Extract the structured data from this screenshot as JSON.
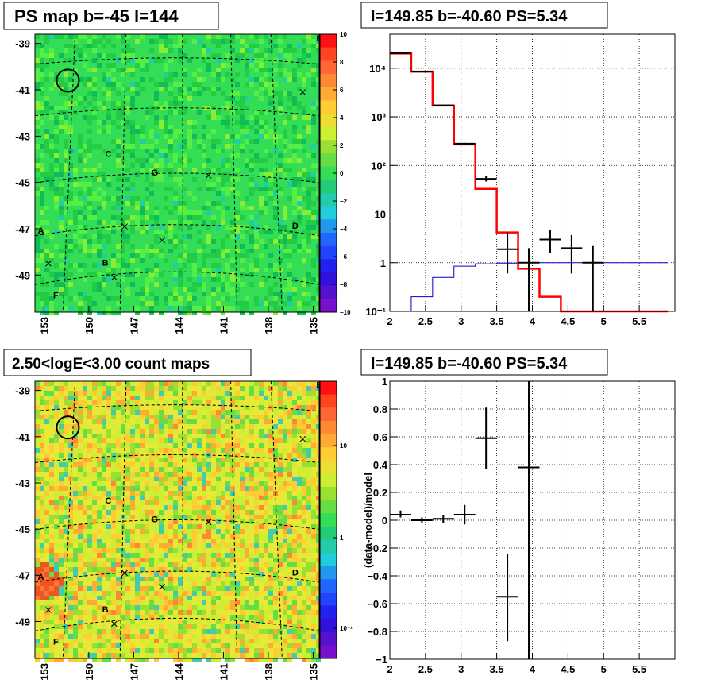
{
  "panels": {
    "ps_map": {
      "title": "PS map b=-45 l=144",
      "y_ticks": [
        "-39",
        "-41",
        "-43",
        "-45",
        "-47",
        "-49"
      ],
      "x_ticks": [
        "153",
        "150",
        "147",
        "144",
        "141",
        "138",
        "135"
      ],
      "colorbar_ticks": [
        "10",
        "8",
        "6",
        "4",
        "2",
        "0",
        "−2",
        "−4",
        "−6",
        "−8",
        "−10"
      ],
      "labels": [
        {
          "text": "E",
          "x": 134.6,
          "y": -38.9
        },
        {
          "text": "C",
          "x": 148.7,
          "y": -43.9
        },
        {
          "text": "G",
          "x": 145.6,
          "y": -44.7
        },
        {
          "text": "A",
          "x": 153.2,
          "y": -47.2
        },
        {
          "text": "D",
          "x": 136.2,
          "y": -47.0
        },
        {
          "text": "B",
          "x": 148.9,
          "y": -48.6
        },
        {
          "text": "F",
          "x": 152.2,
          "y": -50.0
        }
      ],
      "crosses": [
        {
          "x": 135.7,
          "y": -41.1
        },
        {
          "x": 142.0,
          "y": -44.7
        },
        {
          "x": 147.6,
          "y": -46.9
        },
        {
          "x": 145.1,
          "y": -47.5
        },
        {
          "x": 152.7,
          "y": -48.5
        },
        {
          "x": 148.3,
          "y": -49.1
        }
      ],
      "circle": {
        "x": 151.4,
        "y": -40.6
      }
    },
    "count_map": {
      "title": "2.50<logE<3.00 count maps",
      "y_ticks": [
        "-39",
        "-41",
        "-43",
        "-45",
        "-47",
        "-49"
      ],
      "x_ticks": [
        "153",
        "150",
        "147",
        "144",
        "141",
        "138",
        "135"
      ],
      "colorbar_ticks": [
        "10",
        "1",
        "10⁻¹"
      ],
      "labels": [
        {
          "text": "E",
          "x": 134.6,
          "y": -38.9
        },
        {
          "text": "C",
          "x": 148.7,
          "y": -43.9
        },
        {
          "text": "G",
          "x": 145.6,
          "y": -44.7
        },
        {
          "text": "A",
          "x": 153.2,
          "y": -47.2
        },
        {
          "text": "D",
          "x": 136.2,
          "y": -47.0
        },
        {
          "text": "B",
          "x": 148.9,
          "y": -48.6
        },
        {
          "text": "F",
          "x": 152.2,
          "y": -50.0
        }
      ],
      "crosses": [
        {
          "x": 135.7,
          "y": -41.1
        },
        {
          "x": 142.0,
          "y": -44.7
        },
        {
          "x": 147.6,
          "y": -46.9
        },
        {
          "x": 145.1,
          "y": -47.5
        },
        {
          "x": 152.7,
          "y": -48.5
        },
        {
          "x": 148.3,
          "y": -49.1
        }
      ],
      "circle": {
        "x": 151.4,
        "y": -40.6
      }
    },
    "spectrum": {
      "title": "l=149.85 b=-40.60 PS=5.34",
      "x_ticks": [
        "2",
        "2.5",
        "3",
        "3.5",
        "4",
        "4.5",
        "5",
        "5.5"
      ],
      "y_ticks": [
        "10⁻¹",
        "1",
        "10",
        "10²",
        "10³",
        "10⁴"
      ]
    },
    "residual": {
      "title": "l=149.85 b=-40.60 PS=5.34",
      "x_ticks": [
        "2",
        "2.5",
        "3",
        "3.5",
        "4",
        "4.5",
        "5",
        "5.5"
      ],
      "y_ticks": [
        "1",
        "0.8",
        "0.6",
        "0.4",
        "0.2",
        "0",
        "−0.2",
        "−0.4",
        "−0.6",
        "−0.8",
        "−1"
      ],
      "ylabel": "(data-model)/model"
    }
  },
  "colors": {
    "red": "#ff0000",
    "blue": "#0000cc",
    "black": "#000000"
  },
  "chart_data": [
    {
      "type": "heatmap",
      "title": "PS map b=-45 l=144",
      "xlim": [
        153.6,
        134.6
      ],
      "ylim": [
        -50.6,
        -38.6
      ],
      "zlim": [
        -10,
        10
      ]
    },
    {
      "type": "heatmap",
      "title": "2.50<logE<3.00 count maps",
      "xlim": [
        153.6,
        134.6
      ],
      "ylim": [
        -50.6,
        -38.6
      ],
      "zscale": "log"
    },
    {
      "type": "line",
      "title": "l=149.85 b=-40.60 PS=5.34",
      "xlim": [
        2,
        6
      ],
      "ylim": [
        0.1,
        50000
      ],
      "yscale": "log",
      "grid": true,
      "model_total": {
        "edges": [
          2.0,
          2.3,
          2.6,
          2.9,
          3.2,
          3.5,
          3.8,
          4.1,
          4.4,
          4.7,
          5.0,
          5.3,
          5.6,
          5.9
        ],
        "values": [
          20000,
          8500,
          1700,
          270,
          33,
          4.2,
          0.75,
          0.2,
          0.1,
          0.1,
          0.1,
          0.1,
          0.1
        ]
      },
      "background": {
        "edges": [
          2.0,
          2.3,
          2.6,
          2.9,
          3.2,
          3.5,
          3.8,
          4.1,
          4.4,
          4.7,
          5.0,
          5.3,
          5.6,
          5.9
        ],
        "values": [
          0.1,
          0.2,
          0.5,
          0.85,
          0.95,
          0.98,
          1.0,
          1.0,
          1.0,
          1.0,
          1.0,
          1.0,
          1.0
        ]
      },
      "data": [
        {
          "x": 2.15,
          "y": 20500,
          "xerr": 0.15,
          "ylo": 19800,
          "yhi": 21200
        },
        {
          "x": 2.45,
          "y": 8500,
          "xerr": 0.15,
          "ylo": 8300,
          "yhi": 8700
        },
        {
          "x": 2.75,
          "y": 1720,
          "xerr": 0.15,
          "ylo": 1690,
          "yhi": 1750
        },
        {
          "x": 3.05,
          "y": 280,
          "xerr": 0.15,
          "ylo": 270,
          "yhi": 292
        },
        {
          "x": 3.35,
          "y": 53,
          "xerr": 0.15,
          "ylo": 47,
          "yhi": 60
        },
        {
          "x": 3.65,
          "y": 1.9,
          "xerr": 0.15,
          "ylo": 0.6,
          "yhi": 4.2
        },
        {
          "x": 3.95,
          "y": 1.0,
          "xerr": 0.15,
          "ylo": 0.1,
          "yhi": 2.0
        },
        {
          "x": 4.25,
          "y": 3.0,
          "xerr": 0.15,
          "ylo": 1.6,
          "yhi": 4.8
        },
        {
          "x": 4.55,
          "y": 2.0,
          "xerr": 0.15,
          "ylo": 0.6,
          "yhi": 3.7
        },
        {
          "x": 4.85,
          "y": 1.0,
          "xerr": 0.15,
          "ylo": 0.1,
          "yhi": 2.2
        }
      ]
    },
    {
      "type": "scatter",
      "title": "l=149.85 b=-40.60 PS=5.34",
      "ylabel": "(data-model)/model",
      "xlim": [
        2,
        6
      ],
      "ylim": [
        -1,
        1
      ],
      "grid": true,
      "points": [
        {
          "x": 2.15,
          "y": 0.04,
          "xerr": 0.15,
          "ylo": 0.02,
          "yhi": 0.07
        },
        {
          "x": 2.45,
          "y": 0.0,
          "xerr": 0.15,
          "ylo": -0.02,
          "yhi": 0.02
        },
        {
          "x": 2.75,
          "y": 0.01,
          "xerr": 0.15,
          "ylo": -0.02,
          "yhi": 0.04
        },
        {
          "x": 3.05,
          "y": 0.04,
          "xerr": 0.15,
          "ylo": -0.03,
          "yhi": 0.11
        },
        {
          "x": 3.35,
          "y": 0.59,
          "xerr": 0.15,
          "ylo": 0.37,
          "yhi": 0.81
        },
        {
          "x": 3.65,
          "y": -0.55,
          "xerr": 0.15,
          "ylo": -0.87,
          "yhi": -0.24
        },
        {
          "x": 3.95,
          "y": 0.38,
          "xerr": 0.15,
          "ylo": -1.0,
          "yhi": 1.0
        }
      ]
    }
  ]
}
